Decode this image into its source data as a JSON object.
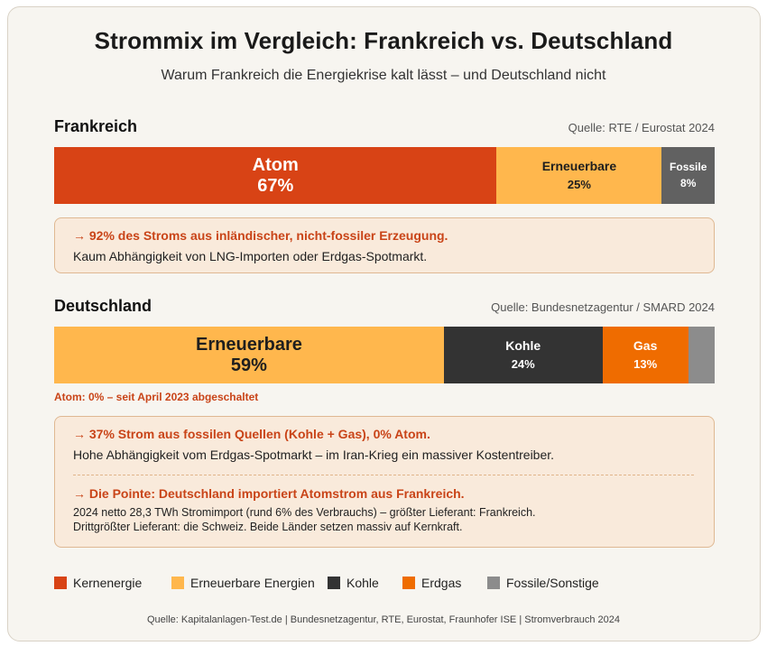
{
  "header": {
    "title": "Strommix im Vergleich: Frankreich vs. Deutschland",
    "subtitle": "Warum Frankreich die Energiekrise kalt lässt – und Deutschland nicht"
  },
  "france": {
    "name": "Frankreich",
    "source": "Quelle: RTE / Eurostat 2024",
    "box": {
      "headline": "→ 92% des Stroms aus inländischer, nicht-fossiler Erzeugung.",
      "text": "Kaum Abhängigkeit von LNG-Importen oder Erdgas-Spotmarkt."
    }
  },
  "germany": {
    "name": "Deutschland",
    "source": "Quelle: Bundesnetzagentur / SMARD 2024",
    "note": "Atom: 0% – seit April 2023 abgeschaltet",
    "box": {
      "headline1": "→ 37% Strom aus fossilen Quellen (Kohle + Gas), 0% Atom.",
      "text1": "Hohe Abhängigkeit vom Erdgas-Spotmarkt – im Iran-Krieg ein massiver Kostentreiber.",
      "headline2": "→ Die Pointe: Deutschland importiert Atomstrom aus Frankreich.",
      "text2_line1": "2024 netto 28,3 TWh Stromimport (rund 6% des Verbrauchs) – größter Lieferant: Frankreich.",
      "text2_line2": "Drittgrößter Lieferant: die Schweiz. Beide Länder setzen massiv auf Kernkraft."
    }
  },
  "legend": [
    {
      "label": "Kernenergie",
      "color": "#d84315"
    },
    {
      "label": "Erneuerbare Energien",
      "color": "#ffb74d"
    },
    {
      "label": "Kohle",
      "color": "#333333"
    },
    {
      "label": "Erdgas",
      "color": "#ef6c00"
    },
    {
      "label": "Fossile/Sonstige",
      "color": "#8c8c8c"
    }
  ],
  "footer": "Quelle: Kapitalanlagen-Test.de | Bundesnetzagentur, RTE, Eurostat, Fraunhofer ISE | Stromverbrauch 2024",
  "chart_data": [
    {
      "type": "bar",
      "stacked": true,
      "orientation": "horizontal",
      "title": "Frankreich",
      "segments": [
        {
          "label": "Atom",
          "value": 67,
          "value_label": "67%",
          "color": "#d84315",
          "text_color": "#ffffff",
          "size": "large"
        },
        {
          "label": "Erneuerbare",
          "value": 25,
          "value_label": "25%",
          "color": "#ffb74d",
          "text_color": "#1e1e1e",
          "size": "medium"
        },
        {
          "label": "Fossile",
          "value": 8,
          "value_label": "8%",
          "color": "#616161",
          "text_color": "#ffffff",
          "size": "small"
        }
      ]
    },
    {
      "type": "bar",
      "stacked": true,
      "orientation": "horizontal",
      "title": "Deutschland",
      "segments": [
        {
          "label": "Erneuerbare",
          "value": 59,
          "value_label": "59%",
          "color": "#ffb74d",
          "text_color": "#1e1e1e",
          "size": "large"
        },
        {
          "label": "Kohle",
          "value": 24,
          "value_label": "24%",
          "color": "#333333",
          "text_color": "#ffffff",
          "size": "medium"
        },
        {
          "label": "Gas",
          "value": 13,
          "value_label": "13%",
          "color": "#ef6c00",
          "text_color": "#ffffff",
          "size": "medium"
        },
        {
          "label": "",
          "value": 4,
          "value_label": "",
          "color": "#8c8c8c",
          "text_color": "#ffffff",
          "size": "small"
        }
      ]
    }
  ]
}
